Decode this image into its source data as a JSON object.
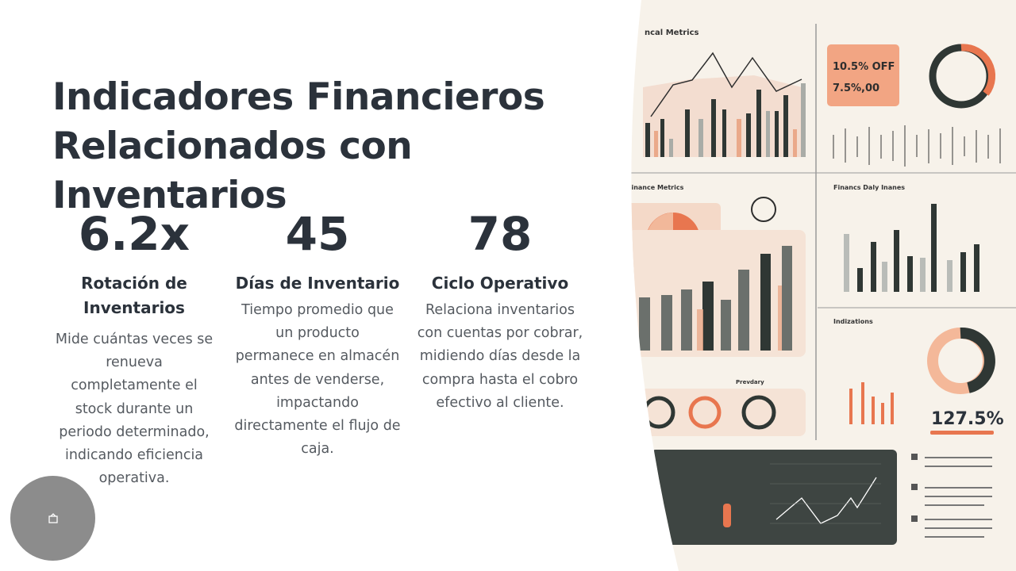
{
  "slide": {
    "title": "Indicadores Financieros Relacionados con Inventarios",
    "metrics": [
      {
        "value": "6.2x",
        "label": "Rotación de Inventarios",
        "description": "Mide cuántas veces se renueva completamente el stock durante un periodo determinado, indicando eficiencia operativa."
      },
      {
        "value": "45",
        "label": "Días de Inventario",
        "description": "Tiempo promedio que un producto permanece en almacén antes de venderse, impactando directamente el flujo de caja."
      },
      {
        "value": "78",
        "label": "Ciclo Operativo",
        "description": "Relaciona inventarios con cuentas por cobrar, midiendo días desde la compra hasta el cobro efectivo al cliente."
      }
    ],
    "image": {
      "panel_titles": [
        "ncal Metrics",
        "Finance Metrics",
        "Financs Daly Inanes",
        "Indizations",
        "Prevdary"
      ],
      "promo": [
        "10.5% OFF",
        "7.5%,00"
      ],
      "big_figure": "127.5%"
    }
  }
}
